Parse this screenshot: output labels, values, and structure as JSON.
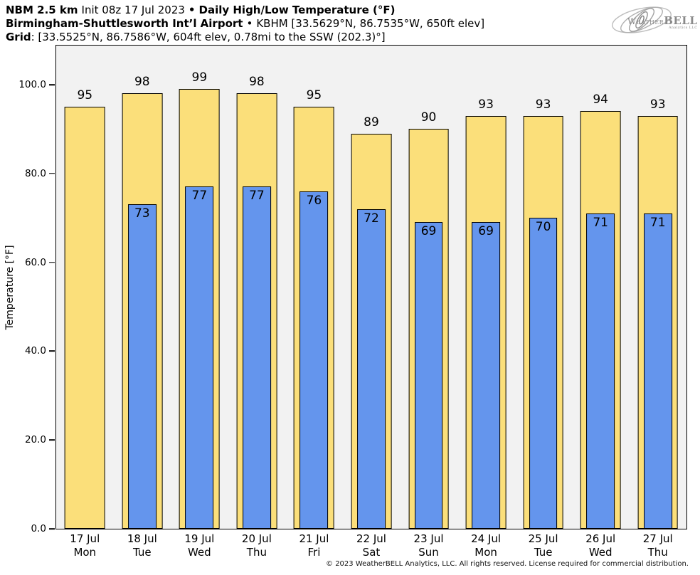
{
  "header": {
    "model": "NBM 2.5 km",
    "init": "Init 08z 17 Jul 2023",
    "separator": "•",
    "product": "Daily High/Low Temperature (°F)",
    "station_name": "Birmingham-Shuttlesworth Int’l Airport",
    "station_sep": "•",
    "station_info": "KBHM [33.5629°N, 86.7535°W, 650ft elev]",
    "grid_label": "Grid",
    "grid_info": ": [33.5525°N, 86.7586°W, 604ft elev, 0.78mi to the SSW (202.3)°]"
  },
  "logo": {
    "text_weather": "Weather",
    "text_bell": "BELL",
    "text_sub": "Analytics LLC"
  },
  "footer": {
    "copyright": "© 2023 WeatherBELL Analytics, LLC. All rights reserved. License required for commercial distribution."
  },
  "chart_data": {
    "type": "bar",
    "title": "Daily High/Low Temperature (°F)",
    "subtitle": "NBM 2.5 km • Birmingham-Shuttlesworth Int’l Airport (KBHM)",
    "xlabel": "",
    "ylabel": "Temperature [°F]",
    "ylim": [
      0,
      108.8
    ],
    "grid": false,
    "legend_position": "none",
    "yticks": [
      0,
      20,
      40,
      60,
      80,
      100
    ],
    "ytick_labels": [
      "0.0",
      "20.0",
      "40.0",
      "60.0",
      "80.0",
      "100.0"
    ],
    "categories": [
      {
        "date": "17 Jul",
        "day": "Mon"
      },
      {
        "date": "18 Jul",
        "day": "Tue"
      },
      {
        "date": "19 Jul",
        "day": "Wed"
      },
      {
        "date": "20 Jul",
        "day": "Thu"
      },
      {
        "date": "21 Jul",
        "day": "Fri"
      },
      {
        "date": "22 Jul",
        "day": "Sat"
      },
      {
        "date": "23 Jul",
        "day": "Sun"
      },
      {
        "date": "24 Jul",
        "day": "Mon"
      },
      {
        "date": "25 Jul",
        "day": "Tue"
      },
      {
        "date": "26 Jul",
        "day": "Wed"
      },
      {
        "date": "27 Jul",
        "day": "Thu"
      }
    ],
    "series": [
      {
        "name": "High",
        "color": "#fbdf7a",
        "values": [
          95,
          98,
          99,
          98,
          95,
          89,
          90,
          93,
          93,
          94,
          93
        ]
      },
      {
        "name": "Low",
        "color": "#6495ed",
        "values": [
          null,
          73,
          77,
          77,
          76,
          72,
          69,
          69,
          70,
          71,
          71
        ]
      }
    ],
    "colors": {
      "plot_background": "#f2f2f2",
      "bar_outline": "#000000"
    }
  }
}
